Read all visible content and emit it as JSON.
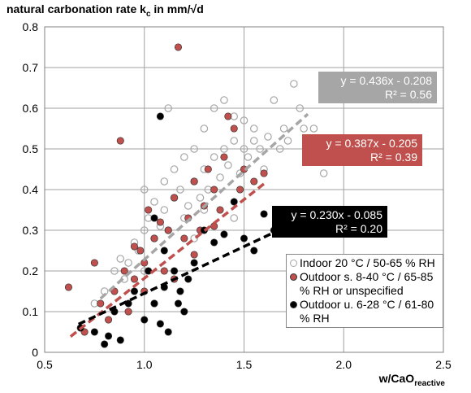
{
  "chart_data": {
    "type": "scatter",
    "title": [
      "natural carbonation rate k",
      "c",
      " in mm/√d"
    ],
    "x_label": [
      "w/CaO",
      "reactive"
    ],
    "xlim": [
      0.5,
      2.5
    ],
    "xticks": [
      0.5,
      {
        "value": 1.0,
        "label": "1.0"
      },
      {
        "value": 1.5,
        "label": "1.5"
      },
      {
        "value": 2.0,
        "label": "2.0"
      },
      2.5
    ],
    "ylim": [
      0,
      0.8
    ],
    "yticks": [
      0,
      0.1,
      0.2,
      0.3,
      0.4,
      0.5,
      0.6,
      0.7,
      0.8
    ],
    "grid": true,
    "legend": "bottom-right",
    "series": [
      {
        "name": "Indoor 20 °C / 50-65 % RH",
        "color": "#a6a6a6",
        "filled": false,
        "x": [
          0.75,
          0.8,
          0.85,
          0.88,
          0.9,
          0.92,
          0.95,
          0.97,
          1.0,
          1.0,
          1.02,
          1.05,
          1.05,
          1.08,
          1.1,
          1.1,
          1.12,
          1.15,
          1.15,
          1.18,
          1.2,
          1.2,
          1.22,
          1.25,
          1.25,
          1.28,
          1.3,
          1.3,
          1.32,
          1.35,
          1.35,
          1.38,
          1.4,
          1.4,
          1.42,
          1.45,
          1.45,
          1.48,
          1.5,
          1.5,
          1.52,
          1.55,
          1.55,
          1.58,
          1.6,
          1.62,
          1.65,
          1.68,
          1.7,
          1.72,
          1.75,
          1.78,
          1.8,
          1.85,
          1.9,
          1.12,
          1.0,
          1.3,
          1.45,
          1.25
        ],
        "values": [
          0.12,
          0.15,
          0.2,
          0.23,
          0.18,
          0.22,
          0.27,
          0.25,
          0.3,
          0.2,
          0.33,
          0.28,
          0.37,
          0.31,
          0.35,
          0.42,
          0.3,
          0.38,
          0.45,
          0.4,
          0.33,
          0.48,
          0.36,
          0.42,
          0.5,
          0.38,
          0.45,
          0.55,
          0.4,
          0.48,
          0.6,
          0.43,
          0.5,
          0.62,
          0.46,
          0.52,
          0.58,
          0.44,
          0.5,
          0.57,
          0.48,
          0.55,
          0.52,
          0.5,
          0.45,
          0.53,
          0.62,
          0.5,
          0.55,
          0.52,
          0.66,
          0.6,
          0.55,
          0.55,
          0.44,
          0.6,
          0.4,
          0.35,
          0.33,
          0.28
        ]
      },
      {
        "name": "Outdoor s. 8-40 °C / 65-85 % RH or unspecified",
        "color": "#c0504d",
        "filled": true,
        "x": [
          0.62,
          0.7,
          0.75,
          0.78,
          0.82,
          0.85,
          0.88,
          0.9,
          0.92,
          0.95,
          0.98,
          1.0,
          1.02,
          1.05,
          1.08,
          1.1,
          1.12,
          1.15,
          1.17,
          1.2,
          1.22,
          1.25,
          1.28,
          1.3,
          1.32,
          1.35,
          1.38,
          1.4,
          1.42,
          1.45,
          1.48,
          1.5,
          1.55,
          1.6,
          1.05,
          1.15,
          0.95,
          1.25,
          1.35,
          1.0
        ],
        "values": [
          0.16,
          0.05,
          0.22,
          0.12,
          0.08,
          0.15,
          0.52,
          0.2,
          0.1,
          0.18,
          0.25,
          0.22,
          0.35,
          0.28,
          0.32,
          0.2,
          0.3,
          0.38,
          0.75,
          0.28,
          0.33,
          0.42,
          0.3,
          0.36,
          0.45,
          0.4,
          0.35,
          0.48,
          0.58,
          0.55,
          0.4,
          0.45,
          0.42,
          0.44,
          0.12,
          0.18,
          0.26,
          0.24,
          0.31,
          0.15
        ]
      },
      {
        "name": "Outdoor u. 6-28 °C / 61-80 % RH",
        "color": "#000000",
        "filled": true,
        "x": [
          0.68,
          0.75,
          0.8,
          0.82,
          0.88,
          0.92,
          0.95,
          1.0,
          1.02,
          1.05,
          1.05,
          1.08,
          1.1,
          1.1,
          1.12,
          1.15,
          1.17,
          1.2,
          1.22,
          1.25,
          1.3,
          1.35,
          1.4,
          1.45,
          1.5,
          1.55,
          1.6,
          1.65,
          1.75,
          1.08,
          0.85,
          1.18
        ],
        "values": [
          0.06,
          0.05,
          0.02,
          0.04,
          0.03,
          0.12,
          0.15,
          0.08,
          0.2,
          0.12,
          0.33,
          0.58,
          0.16,
          0.25,
          0.05,
          0.2,
          0.12,
          0.1,
          0.18,
          0.22,
          0.3,
          0.27,
          0.29,
          0.37,
          0.28,
          0.25,
          0.34,
          0.3,
          0.16,
          0.07,
          0.1,
          0.15
        ]
      }
    ],
    "trendlines": [
      {
        "equation": "y = 0.436x - 0.208",
        "r2": "R² = 0.56",
        "slope": 0.436,
        "intercept": -0.208,
        "x": [
          0.78,
          1.82
        ],
        "color": "#a6a6a6"
      },
      {
        "equation": "y = 0.387x - 0.205",
        "r2": "R² = 0.39",
        "slope": 0.387,
        "intercept": -0.205,
        "x": [
          0.63,
          1.6
        ],
        "color": "#c0504d"
      },
      {
        "equation": "y = 0.230x - 0.085",
        "r2": "R² = 0.20",
        "slope": 0.23,
        "intercept": -0.085,
        "x": [
          0.67,
          1.67
        ],
        "color": "#000000"
      }
    ]
  }
}
